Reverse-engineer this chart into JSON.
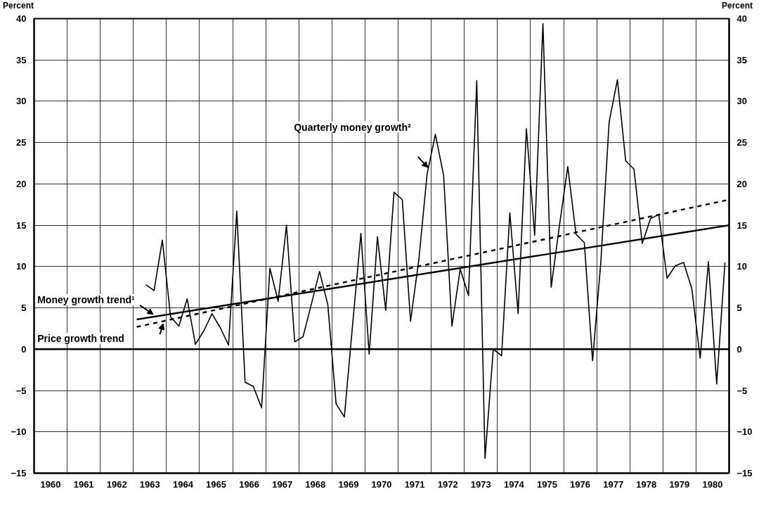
{
  "chart_data": {
    "type": "line",
    "ylabel": "Percent",
    "y2label": "Percent",
    "xlim": [
      1960,
      1981
    ],
    "xticks": [
      {
        "value": 1960,
        "label": null
      },
      {
        "value": 1961,
        "label": null
      },
      {
        "value": 1962,
        "label": null
      },
      {
        "value": 1963,
        "label": null
      },
      {
        "value": 1964,
        "label": null
      },
      {
        "value": 1965,
        "label": null
      },
      {
        "value": 1966,
        "label": null
      },
      {
        "value": 1967,
        "label": null
      },
      {
        "value": 1968,
        "label": null
      },
      {
        "value": 1969,
        "label": null
      },
      {
        "value": 1970,
        "label": null
      },
      {
        "value": 1971,
        "label": null
      },
      {
        "value": 1972,
        "label": null
      },
      {
        "value": 1973,
        "label": null
      },
      {
        "value": 1974,
        "label": null
      },
      {
        "value": 1975,
        "label": null
      },
      {
        "value": 1976,
        "label": null
      },
      {
        "value": 1977,
        "label": null
      },
      {
        "value": 1978,
        "label": null
      },
      {
        "value": 1979,
        "label": null
      },
      {
        "value": 1980,
        "label": null
      },
      {
        "value": 1981,
        "label": null
      },
      {
        "value": 1960.5,
        "label": "1960"
      },
      {
        "value": 1961.5,
        "label": "1961"
      },
      {
        "value": 1962.5,
        "label": "1962"
      },
      {
        "value": 1963.5,
        "label": "1963"
      },
      {
        "value": 1964.5,
        "label": "1964"
      },
      {
        "value": 1965.5,
        "label": "1965"
      },
      {
        "value": 1966.5,
        "label": "1966"
      },
      {
        "value": 1967.5,
        "label": "1967"
      },
      {
        "value": 1968.5,
        "label": "1968"
      },
      {
        "value": 1969.5,
        "label": "1969"
      },
      {
        "value": 1970.5,
        "label": "1970"
      },
      {
        "value": 1971.5,
        "label": "1971"
      },
      {
        "value": 1972.5,
        "label": "1972"
      },
      {
        "value": 1973.5,
        "label": "1973"
      },
      {
        "value": 1974.5,
        "label": "1974"
      },
      {
        "value": 1975.5,
        "label": "1975"
      },
      {
        "value": 1976.5,
        "label": "1976"
      },
      {
        "value": 1977.5,
        "label": "1977"
      },
      {
        "value": 1978.5,
        "label": "1978"
      },
      {
        "value": 1979.5,
        "label": "1979"
      },
      {
        "value": 1980.5,
        "label": "1980"
      }
    ],
    "ylim": [
      -15,
      40
    ],
    "yticks": [
      -15,
      -10,
      -5,
      0,
      5,
      10,
      15,
      20,
      25,
      30,
      35,
      40
    ],
    "y2lim": [
      -15,
      40
    ],
    "y2ticks": [
      -15,
      -10,
      -5,
      0,
      5,
      10,
      15,
      20,
      25,
      30,
      35,
      40
    ],
    "grid": true,
    "ref_lines": [
      {
        "axis": "y",
        "value": 0,
        "color": "#000000"
      }
    ],
    "series": [
      {
        "name": "Quarterly money growth²",
        "color": "#000000",
        "line_style": "solid",
        "x": [
          1963.375,
          1963.625,
          1963.875,
          1964.125,
          1964.375,
          1964.625,
          1964.875,
          1965.125,
          1965.375,
          1965.625,
          1965.875,
          1966.125,
          1966.375,
          1966.625,
          1966.875,
          1967.125,
          1967.375,
          1967.625,
          1967.875,
          1968.125,
          1968.375,
          1968.625,
          1968.875,
          1969.125,
          1969.375,
          1969.625,
          1969.875,
          1970.125,
          1970.375,
          1970.625,
          1970.875,
          1971.125,
          1971.375,
          1971.625,
          1971.875,
          1972.125,
          1972.375,
          1972.625,
          1972.875,
          1973.125,
          1973.375,
          1973.625,
          1973.875,
          1974.125,
          1974.375,
          1974.625,
          1974.875,
          1975.125,
          1975.375,
          1975.625,
          1975.875,
          1976.125,
          1976.375,
          1976.625,
          1976.875,
          1977.125,
          1977.375,
          1977.625,
          1977.875,
          1978.125,
          1978.375,
          1978.625,
          1978.875,
          1979.125,
          1979.375,
          1979.625,
          1979.875,
          1980.125,
          1980.375,
          1980.625,
          1980.875
        ],
        "values": [
          7.8,
          7.1,
          13.2,
          3.9,
          2.8,
          6.1,
          0.6,
          2.2,
          4.3,
          2.6,
          0.5,
          16.7,
          -4.0,
          -4.5,
          -7.1,
          9.8,
          5.8,
          15.0,
          0.9,
          1.5,
          5.4,
          9.4,
          5.4,
          -6.6,
          -8.2,
          3.0,
          14.0,
          -0.6,
          13.6,
          4.7,
          19.0,
          18.1,
          3.4,
          10.8,
          21.2,
          26.0,
          21.0,
          2.8,
          9.7,
          6.5,
          32.5,
          -13.2,
          0.0,
          -0.8,
          16.5,
          4.3,
          26.7,
          13.8,
          39.4,
          7.5,
          15.0,
          22.1,
          13.9,
          12.9,
          -1.4,
          10.6,
          27.5,
          32.6,
          22.8,
          21.8,
          12.8,
          15.8,
          16.3,
          8.6,
          10.1,
          10.5,
          7.3,
          -1.1,
          10.6,
          -4.2,
          10.5
        ]
      },
      {
        "name": "Money growth trend¹",
        "color": "#000000",
        "line_style": "solid",
        "x": [
          1963.1,
          1981
        ],
        "values": [
          3.6,
          15.0
        ]
      },
      {
        "name": "Price growth trend",
        "color": "#000000",
        "line_style": "dashed",
        "x": [
          1963.1,
          1981
        ],
        "values": [
          2.7,
          18.1
        ]
      }
    ]
  }
}
